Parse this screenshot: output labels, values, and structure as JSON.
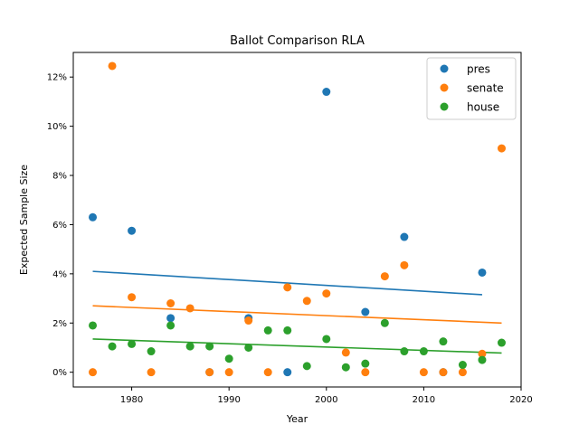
{
  "chart_data": {
    "type": "scatter",
    "title": "Ballot Comparison RLA",
    "xlabel": "Year",
    "ylabel": "Expected Sample Size",
    "xlim": [
      1974,
      2020
    ],
    "ylim": [
      -0.6,
      13.0
    ],
    "xticks": [
      1980,
      1990,
      2000,
      2010,
      2020
    ],
    "xtick_labels": [
      "1980",
      "1990",
      "2000",
      "2010",
      "2020"
    ],
    "yticks": [
      0,
      2,
      4,
      6,
      8,
      10,
      12
    ],
    "ytick_labels": [
      "0%",
      "2%",
      "4%",
      "6%",
      "8%",
      "10%",
      "12%"
    ],
    "legend_position": "top-right",
    "series": [
      {
        "name": "pres",
        "color": "#1f77b4",
        "x": [
          1976,
          1980,
          1984,
          1988,
          1992,
          1996,
          2000,
          2004,
          2008,
          2012,
          2016
        ],
        "y": [
          6.3,
          5.75,
          2.2,
          0.0,
          2.2,
          0.0,
          11.4,
          2.45,
          5.5,
          0.0,
          4.05
        ],
        "trend": [
          [
            1976,
            4.1
          ],
          [
            2016,
            3.15
          ]
        ]
      },
      {
        "name": "senate",
        "color": "#ff7f0e",
        "x": [
          1976,
          1978,
          1980,
          1982,
          1984,
          1986,
          1988,
          1990,
          1992,
          1994,
          1996,
          1998,
          2000,
          2002,
          2004,
          2006,
          2008,
          2010,
          2012,
          2014,
          2016,
          2018
        ],
        "y": [
          0.0,
          12.45,
          3.05,
          0.0,
          2.8,
          2.6,
          0.0,
          0.0,
          2.1,
          0.0,
          3.45,
          2.9,
          3.2,
          0.8,
          0.0,
          3.9,
          4.35,
          0.0,
          0.0,
          0.0,
          0.75,
          9.1
        ],
        "trend": [
          [
            1976,
            2.7
          ],
          [
            2018,
            2.0
          ]
        ]
      },
      {
        "name": "house",
        "color": "#2ca02c",
        "x": [
          1976,
          1978,
          1980,
          1982,
          1984,
          1986,
          1988,
          1990,
          1992,
          1994,
          1996,
          1998,
          2000,
          2002,
          2004,
          2006,
          2008,
          2010,
          2012,
          2014,
          2016,
          2018
        ],
        "y": [
          1.9,
          1.05,
          1.15,
          0.85,
          1.9,
          1.05,
          1.05,
          0.55,
          1.0,
          1.7,
          1.7,
          0.25,
          1.35,
          0.2,
          0.35,
          2.0,
          0.85,
          0.85,
          1.25,
          0.3,
          0.5,
          1.2
        ],
        "trend": [
          [
            1976,
            1.35
          ],
          [
            2018,
            0.78
          ]
        ]
      }
    ]
  }
}
